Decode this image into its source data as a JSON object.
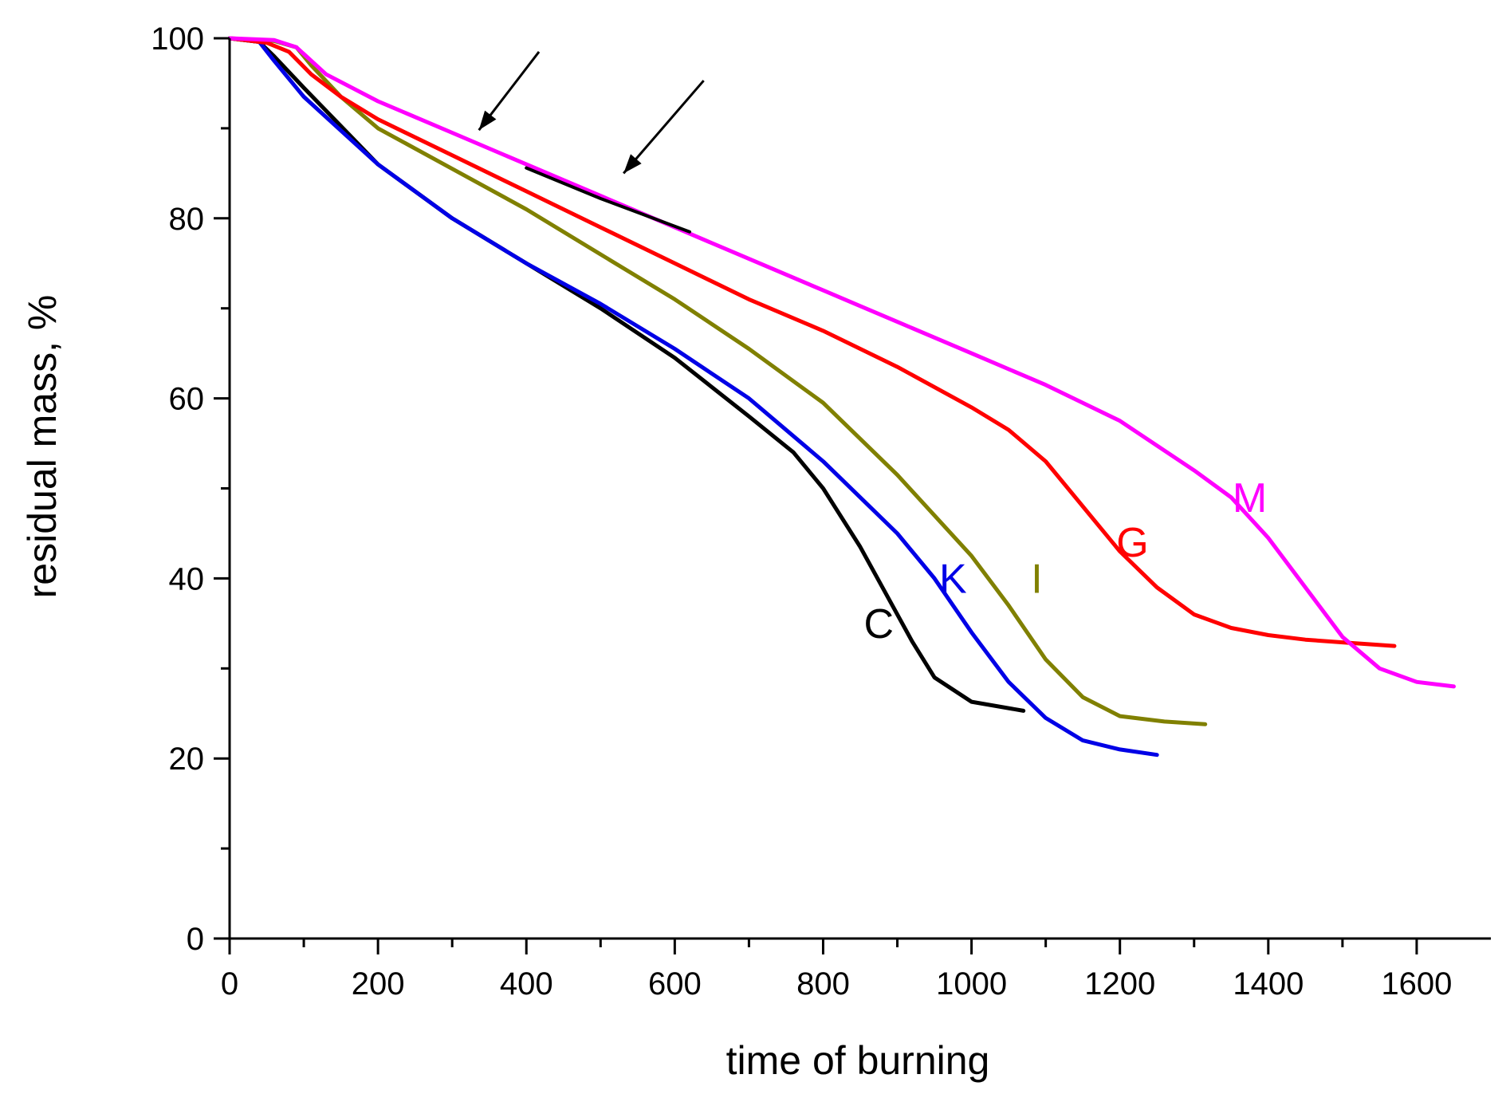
{
  "chart_data": {
    "type": "line",
    "title": "",
    "xlabel": "time of burning",
    "ylabel": "residual mass, %",
    "xlim": [
      0,
      1700
    ],
    "ylim": [
      0,
      100
    ],
    "x_major_ticks": [
      0,
      200,
      400,
      600,
      800,
      1000,
      1200,
      1400,
      1600
    ],
    "x_tick_labels": [
      "0",
      "200",
      "400",
      "600",
      "800",
      "1000",
      "1200",
      "1400",
      "1600"
    ],
    "x_minor_ticks": [
      100,
      300,
      500,
      700,
      900,
      1100,
      1300,
      1500
    ],
    "y_major_ticks": [
      0,
      20,
      40,
      60,
      80,
      100
    ],
    "y_tick_labels": [
      "0",
      "20",
      "40",
      "60",
      "80",
      "100"
    ],
    "y_minor_ticks": [
      10,
      30,
      50,
      70,
      90
    ],
    "grid": false,
    "series": [
      {
        "name": "C",
        "color": "#000000",
        "points": [
          [
            0,
            100
          ],
          [
            40,
            99.6
          ],
          [
            60,
            98
          ],
          [
            100,
            94.5
          ],
          [
            200,
            86
          ],
          [
            300,
            80
          ],
          [
            400,
            75
          ],
          [
            500,
            70
          ],
          [
            600,
            64.5
          ],
          [
            700,
            58
          ],
          [
            760,
            54
          ],
          [
            800,
            50
          ],
          [
            850,
            43.5
          ],
          [
            880,
            39
          ],
          [
            920,
            33
          ],
          [
            950,
            29
          ],
          [
            1000,
            26.3
          ],
          [
            1070,
            25.3
          ]
        ],
        "label_at": [
          875,
          35
        ]
      },
      {
        "name": "K",
        "color": "#0000e6",
        "points": [
          [
            0,
            100
          ],
          [
            40,
            99.6
          ],
          [
            60,
            97.5
          ],
          [
            100,
            93.5
          ],
          [
            200,
            86
          ],
          [
            300,
            80
          ],
          [
            400,
            75
          ],
          [
            500,
            70.5
          ],
          [
            600,
            65.5
          ],
          [
            700,
            60
          ],
          [
            800,
            53
          ],
          [
            900,
            45
          ],
          [
            950,
            40
          ],
          [
            1000,
            34
          ],
          [
            1050,
            28.5
          ],
          [
            1100,
            24.5
          ],
          [
            1150,
            22
          ],
          [
            1200,
            21
          ],
          [
            1250,
            20.4
          ]
        ],
        "label_at": [
          975,
          40
        ]
      },
      {
        "name": "I",
        "color": "#808000",
        "points": [
          [
            0,
            100
          ],
          [
            60,
            99.7
          ],
          [
            90,
            99
          ],
          [
            110,
            97
          ],
          [
            150,
            93.5
          ],
          [
            200,
            90
          ],
          [
            300,
            85.5
          ],
          [
            400,
            81
          ],
          [
            500,
            76
          ],
          [
            600,
            71
          ],
          [
            700,
            65.5
          ],
          [
            800,
            59.5
          ],
          [
            900,
            51.5
          ],
          [
            1000,
            42.5
          ],
          [
            1050,
            37
          ],
          [
            1100,
            31
          ],
          [
            1150,
            26.8
          ],
          [
            1200,
            24.7
          ],
          [
            1260,
            24.1
          ],
          [
            1315,
            23.8
          ]
        ],
        "label_at": [
          1088,
          40
        ]
      },
      {
        "name": "G",
        "color": "#ff0000",
        "points": [
          [
            0,
            100
          ],
          [
            50,
            99.5
          ],
          [
            80,
            98.5
          ],
          [
            110,
            96
          ],
          [
            150,
            93.5
          ],
          [
            200,
            91
          ],
          [
            300,
            87
          ],
          [
            400,
            83
          ],
          [
            500,
            79
          ],
          [
            600,
            75
          ],
          [
            700,
            71
          ],
          [
            800,
            67.5
          ],
          [
            900,
            63.5
          ],
          [
            1000,
            59
          ],
          [
            1050,
            56.5
          ],
          [
            1100,
            53
          ],
          [
            1150,
            48
          ],
          [
            1200,
            43
          ],
          [
            1250,
            39
          ],
          [
            1300,
            36
          ],
          [
            1350,
            34.5
          ],
          [
            1400,
            33.7
          ],
          [
            1450,
            33.2
          ],
          [
            1500,
            32.9
          ],
          [
            1570,
            32.5
          ]
        ],
        "label_at": [
          1217,
          44
        ]
      },
      {
        "name": "M",
        "color": "#ff00ff",
        "points": [
          [
            0,
            100
          ],
          [
            60,
            99.8
          ],
          [
            90,
            99
          ],
          [
            130,
            96
          ],
          [
            200,
            93
          ],
          [
            300,
            89.5
          ],
          [
            400,
            86
          ],
          [
            500,
            82.5
          ],
          [
            600,
            79
          ],
          [
            700,
            75.5
          ],
          [
            800,
            72
          ],
          [
            900,
            68.5
          ],
          [
            1000,
            65
          ],
          [
            1100,
            61.5
          ],
          [
            1200,
            57.5
          ],
          [
            1300,
            52
          ],
          [
            1350,
            49
          ],
          [
            1400,
            44.5
          ],
          [
            1450,
            39
          ],
          [
            1500,
            33.5
          ],
          [
            1550,
            30
          ],
          [
            1600,
            28.5
          ],
          [
            1650,
            28
          ]
        ],
        "label_at": [
          1375,
          49
        ]
      }
    ],
    "overlay_segment": {
      "color": "#000000",
      "points": [
        [
          400,
          85.6
        ],
        [
          500,
          82.2
        ],
        [
          620,
          78.5
        ]
      ]
    },
    "annotations": [
      {
        "type": "arrow",
        "from": [
          417,
          98.5
        ],
        "to": [
          336,
          89.8
        ]
      },
      {
        "type": "arrow",
        "from": [
          639,
          95.3
        ],
        "to": [
          531,
          85
        ]
      }
    ]
  }
}
